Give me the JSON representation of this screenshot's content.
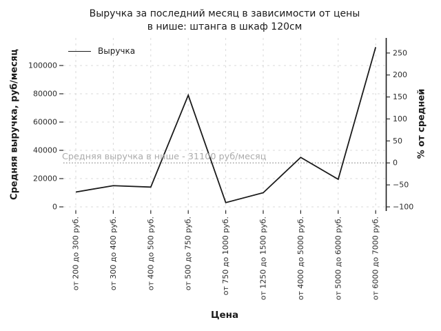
{
  "chart_data": {
    "type": "line",
    "title": "Выручка за последний месяц в зависимости от цены\nв нише: штанга в шкаф 120см",
    "xlabel": "Цена",
    "ylabel": "Средняя выручка, руб/месяц",
    "ylabel_right": "% от средней",
    "grid": true,
    "legend_position": "upper-left",
    "categories": [
      "от 200 до 300 руб.",
      "от 300 до 400 руб.",
      "от 400 до 500 руб.",
      "от 500 до 750 руб.",
      "от 750 до 1000 руб.",
      "от 1250 до 1500 руб.",
      "от 4000 до 5000 руб.",
      "от 5000 до 6000 руб.",
      "от 6000 до 7000 руб."
    ],
    "series": [
      {
        "name": "Выручка",
        "color": "#1a1a1a",
        "values": [
          10500,
          15000,
          14000,
          79000,
          3000,
          10000,
          35000,
          19500,
          113000
        ]
      }
    ],
    "average_line": {
      "value": 31100,
      "label": "Средняя выручка в нише - 31100 руб/месяц",
      "style": "dotted",
      "color": "#8c8c8c"
    },
    "y_left_ticks": [
      0,
      20000,
      40000,
      60000,
      80000,
      100000
    ],
    "y_right_ticks": [
      -100,
      -50,
      0,
      50,
      100,
      150,
      200,
      250
    ],
    "ylim_left": [
      0,
      119500
    ],
    "right_axis_relation": "percent = (value - 31100) / 31100 * 100",
    "colors": {
      "line": "#1a1a1a",
      "grid": "#d9d9d9",
      "average_line": "#8c8c8c",
      "annotation_text": "#ababab",
      "tick_text": "#2b2b2b",
      "spine": "#1a1a1a"
    }
  }
}
